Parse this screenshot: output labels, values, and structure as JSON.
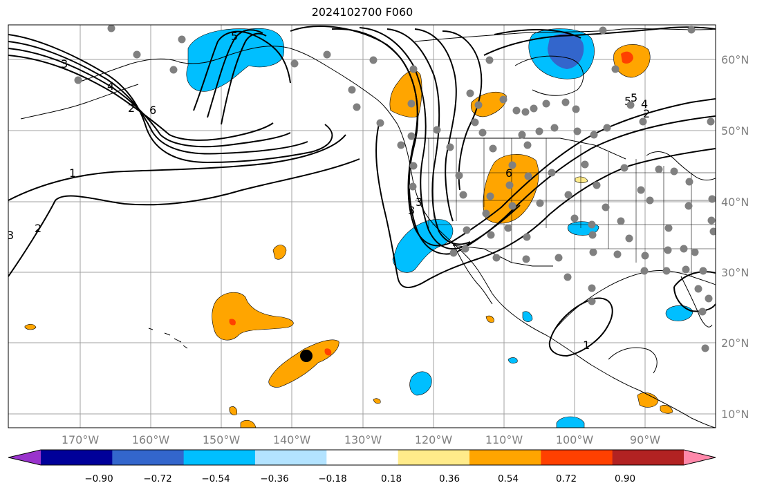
{
  "title": "2024102700 F060",
  "map": {
    "latitude_labels": [
      "60°N",
      "50°N",
      "40°N",
      "30°N",
      "20°N",
      "10°N"
    ],
    "longitude_labels": [
      "170°W",
      "160°W",
      "150°W",
      "140°W",
      "130°W",
      "120°W",
      "110°W",
      "100°W",
      "90°W"
    ],
    "contour_labels": [
      "3",
      "4",
      "5",
      "6",
      "1",
      "2",
      "3",
      "5",
      "6",
      "4",
      "5",
      "2",
      "3",
      "1",
      "2",
      "3"
    ],
    "colors": {
      "ocean": "#ffffff",
      "coast": "#000000",
      "grid": "#a0a0a0",
      "station": "#808080",
      "storm_marker": "#000000"
    }
  },
  "colorbar": {
    "tick_labels": [
      "−0.90",
      "−0.72",
      "−0.54",
      "−0.36",
      "−0.18",
      "0.18",
      "0.36",
      "0.54",
      "0.72",
      "0.90"
    ],
    "colors": [
      "#9933cc",
      "#000099",
      "#3366cc",
      "#00bfff",
      "#b3e3ff",
      "#ffffff",
      "#ffeb8a",
      "#ffa500",
      "#ff4000",
      "#b22222",
      "#ff88aa"
    ]
  }
}
